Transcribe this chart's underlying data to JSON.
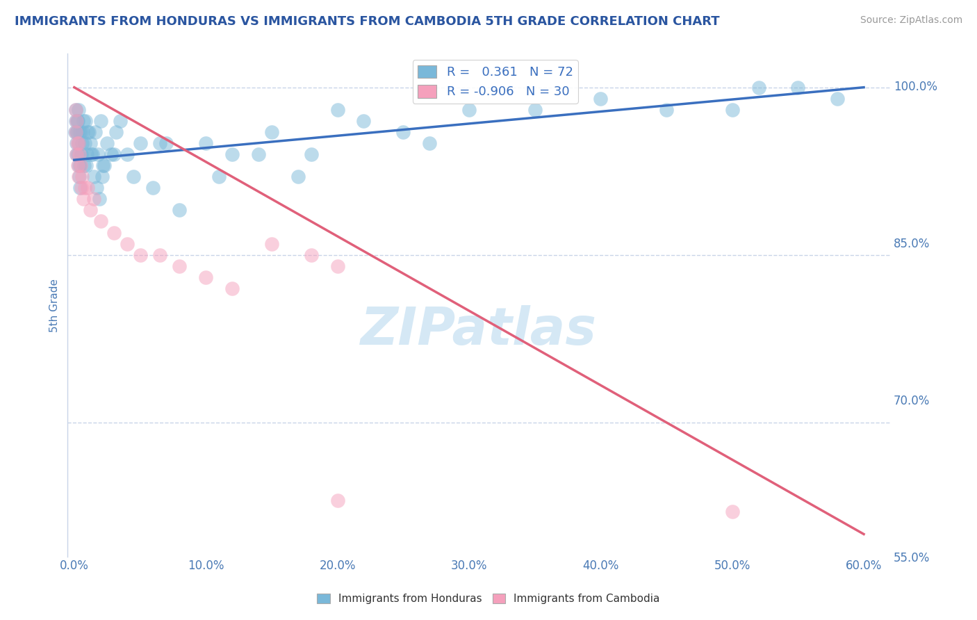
{
  "title": "IMMIGRANTS FROM HONDURAS VS IMMIGRANTS FROM CAMBODIA 5TH GRADE CORRELATION CHART",
  "source": "Source: ZipAtlas.com",
  "ylabel": "5th Grade",
  "x_tick_labels": [
    "0.0%",
    "10.0%",
    "20.0%",
    "30.0%",
    "40.0%",
    "50.0%",
    "60.0%"
  ],
  "x_tick_values": [
    0,
    10,
    20,
    30,
    40,
    50,
    60
  ],
  "y_tick_labels": [
    "100.0%",
    "85.0%",
    "70.0%",
    "55.0%"
  ],
  "y_tick_values": [
    100,
    85,
    70,
    55
  ],
  "ylim": [
    58,
    103
  ],
  "xlim": [
    -0.5,
    62
  ],
  "honduras_R": 0.361,
  "honduras_N": 72,
  "cambodia_R": -0.906,
  "cambodia_N": 30,
  "blue_color": "#7ab8d9",
  "blue_line_color": "#3a6fbf",
  "pink_color": "#f5a0bc",
  "pink_line_color": "#e0607a",
  "watermark_color": "#d5e8f5",
  "title_color": "#2a55a0",
  "tick_label_color": "#4a7ab5",
  "grid_color": "#c8d4e8",
  "honduras_x": [
    0.1,
    0.15,
    0.2,
    0.25,
    0.3,
    0.35,
    0.4,
    0.5,
    0.6,
    0.7,
    0.8,
    0.9,
    1.0,
    1.2,
    1.4,
    1.6,
    1.8,
    2.0,
    2.2,
    2.5,
    3.0,
    3.5,
    4.0,
    5.0,
    7.0,
    10.0,
    12.0,
    15.0,
    18.0,
    20.0,
    25.0,
    30.0,
    40.0,
    50.0,
    55.0,
    0.12,
    0.18,
    0.22,
    0.28,
    0.32,
    0.38,
    0.42,
    0.45,
    0.55,
    0.65,
    0.75,
    0.85,
    0.95,
    1.1,
    1.3,
    1.5,
    1.7,
    1.9,
    2.1,
    2.3,
    2.8,
    3.2,
    4.5,
    6.0,
    8.0,
    11.0,
    14.0,
    17.0,
    22.0,
    27.0,
    35.0,
    45.0,
    52.0,
    58.0,
    0.08,
    0.16,
    6.5
  ],
  "honduras_y": [
    98,
    96,
    97,
    97,
    95,
    98,
    96,
    96,
    95,
    97,
    95,
    93,
    96,
    95,
    94,
    96,
    94,
    97,
    93,
    95,
    94,
    97,
    94,
    95,
    95,
    95,
    94,
    96,
    94,
    98,
    96,
    98,
    99,
    98,
    100,
    97,
    95,
    96,
    94,
    93,
    92,
    91,
    93,
    94,
    96,
    93,
    97,
    94,
    96,
    94,
    92,
    91,
    90,
    92,
    93,
    94,
    96,
    92,
    91,
    89,
    92,
    94,
    92,
    97,
    95,
    98,
    98,
    100,
    99,
    96,
    94,
    95
  ],
  "cambodia_x": [
    0.1,
    0.15,
    0.2,
    0.3,
    0.4,
    0.5,
    0.6,
    0.8,
    1.0,
    1.5,
    2.0,
    3.0,
    4.0,
    5.0,
    6.5,
    8.0,
    10.0,
    12.0,
    15.0,
    18.0,
    20.0,
    0.12,
    0.18,
    0.25,
    0.35,
    0.55,
    0.7,
    1.2,
    50.0,
    20.0
  ],
  "cambodia_y": [
    98,
    97,
    95,
    95,
    94,
    93,
    92,
    91,
    91,
    90,
    88,
    87,
    86,
    85,
    85,
    84,
    83,
    82,
    86,
    85,
    84,
    96,
    94,
    93,
    92,
    91,
    90,
    89,
    62,
    63
  ],
  "blue_line_x0": 0,
  "blue_line_y0": 93.5,
  "blue_line_x1": 60,
  "blue_line_y1": 100,
  "pink_line_x0": 0,
  "pink_line_y0": 100,
  "pink_line_x1": 60,
  "pink_line_y1": 60
}
